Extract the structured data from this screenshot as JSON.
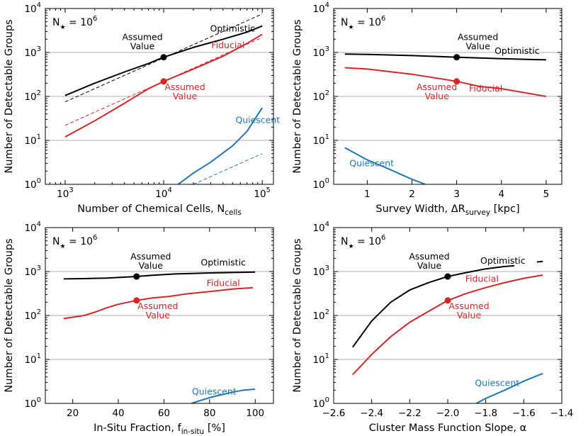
{
  "figure_label": "Four-panel sensitivity figure",
  "chart_data": [
    {
      "type": "line",
      "panel": "top-left",
      "xscale": "log",
      "xlim": [
        630,
        130000
      ],
      "ylim": [
        1,
        10000
      ],
      "xlabel": "Number of Chemical Cells, N",
      "xlabel_sub": "cells",
      "ylabel": "Number of Detectable Groups",
      "nstar_main": "N",
      "nstar_star": "★",
      "nstar_eq": " = 10",
      "nstar_exp": "6",
      "xticks": [
        {
          "v": 1000,
          "base": "10",
          "exp": "3"
        },
        {
          "v": 10000,
          "base": "10",
          "exp": "4"
        },
        {
          "v": 100000,
          "base": "10",
          "exp": "5"
        }
      ],
      "yticks": [
        {
          "v": 1,
          "base": "10",
          "exp": "0"
        },
        {
          "v": 10,
          "base": "10",
          "exp": "1"
        },
        {
          "v": 100,
          "base": "10",
          "exp": "2"
        },
        {
          "v": 1000,
          "base": "10",
          "exp": "3"
        },
        {
          "v": 10000,
          "base": "10",
          "exp": "4"
        }
      ],
      "series": [
        {
          "name": "Optimistic",
          "color": "#000000",
          "style": "solid",
          "x": [
            1000,
            2000,
            4000,
            7000,
            10000,
            20000,
            40000,
            70000,
            100000
          ],
          "y": [
            105,
            200,
            360,
            560,
            780,
            1300,
            2000,
            2900,
            4000
          ]
        },
        {
          "name": "Fiducial",
          "color": "#d62728",
          "style": "solid",
          "x": [
            1000,
            2000,
            4000,
            7000,
            10000,
            20000,
            40000,
            70000,
            100000
          ],
          "y": [
            12,
            28,
            70,
            150,
            220,
            420,
            820,
            1600,
            2600
          ]
        },
        {
          "name": "Quiescent",
          "color": "#1f77b4",
          "style": "solid",
          "x": [
            14000,
            20000,
            30000,
            50000,
            70000,
            100000
          ],
          "y": [
            1,
            1.8,
            3.2,
            7.5,
            16,
            55
          ]
        },
        {
          "name": "Optimistic scaling",
          "color": "#000000",
          "style": "dashed",
          "x": [
            1000,
            100000
          ],
          "y": [
            75,
            7500
          ]
        },
        {
          "name": "Fiducial scaling",
          "color": "#d62728",
          "style": "dashed",
          "x": [
            1000,
            100000
          ],
          "y": [
            22,
            2200
          ]
        },
        {
          "name": "Quiescent scaling",
          "color": "#1f77b4",
          "style": "dashed",
          "x": [
            20000,
            100000
          ],
          "y": [
            1,
            5
          ]
        }
      ],
      "markers": [
        {
          "x": 10000,
          "y": 780,
          "color": "#000000",
          "text1": "Assumed",
          "text2": "Value"
        },
        {
          "x": 10000,
          "y": 220,
          "color": "#d62728",
          "text1": "Assumed",
          "text2": "Value"
        }
      ],
      "labels": [
        {
          "text": "Optimistic",
          "color": "#000000",
          "x": 50000,
          "y": 3000
        },
        {
          "text": "Fiducial",
          "color": "#d62728",
          "x": 45000,
          "y": 1250
        },
        {
          "text": "Quiescent",
          "color": "#1f77b4",
          "x": 90000,
          "y": 25
        }
      ]
    },
    {
      "type": "line",
      "panel": "top-right",
      "xscale": "linear",
      "xlim": [
        0.25,
        5.35
      ],
      "ylim": [
        1,
        10000
      ],
      "xlabel": "Survey Width, ΔR",
      "xlabel_sub": "survey",
      "xlabel_tail": " [kpc]",
      "ylabel": "Number of Detectable Groups",
      "nstar_main": "N",
      "nstar_star": "★",
      "nstar_eq": " = 10",
      "nstar_exp": "6",
      "xticks": [
        {
          "v": 1,
          "text": "1"
        },
        {
          "v": 2,
          "text": "2"
        },
        {
          "v": 3,
          "text": "3"
        },
        {
          "v": 4,
          "text": "4"
        },
        {
          "v": 5,
          "text": "5"
        }
      ],
      "yticks": [
        {
          "v": 1,
          "base": "10",
          "exp": "0"
        },
        {
          "v": 10,
          "base": "10",
          "exp": "1"
        },
        {
          "v": 100,
          "base": "10",
          "exp": "2"
        },
        {
          "v": 1000,
          "base": "10",
          "exp": "3"
        },
        {
          "v": 10000,
          "base": "10",
          "exp": "4"
        }
      ],
      "series": [
        {
          "name": "Optimistic",
          "color": "#000000",
          "style": "solid",
          "x": [
            0.5,
            1.0,
            2.0,
            3.0,
            4.0,
            5.0
          ],
          "y": [
            920,
            900,
            850,
            780,
            720,
            680
          ]
        },
        {
          "name": "Fiducial",
          "color": "#d62728",
          "style": "solid",
          "x": [
            0.5,
            1.0,
            2.0,
            3.0,
            3.5,
            4.0,
            5.0
          ],
          "y": [
            450,
            420,
            320,
            220,
            170,
            150,
            100
          ]
        },
        {
          "name": "Quiescent",
          "color": "#1f77b4",
          "style": "solid",
          "x": [
            0.5,
            1.0,
            1.5,
            2.0,
            2.3
          ],
          "y": [
            6.8,
            3.6,
            2.2,
            1.3,
            1.0
          ]
        }
      ],
      "markers": [
        {
          "x": 3.0,
          "y": 780,
          "color": "#000000",
          "text1": "Assumed",
          "text2": "Value"
        },
        {
          "x": 3.0,
          "y": 220,
          "color": "#d62728",
          "text1": "Assumed",
          "text2": "Value"
        }
      ],
      "labels": [
        {
          "text": "Optimistic",
          "color": "#000000",
          "x": 4.35,
          "y": 920
        },
        {
          "text": "Fiducial",
          "color": "#d62728",
          "x": 3.65,
          "y": 130
        },
        {
          "text": "Quiescent",
          "color": "#1f77b4",
          "x": 1.1,
          "y": 2.6
        }
      ]
    },
    {
      "type": "line",
      "panel": "bottom-left",
      "xscale": "linear",
      "xlim": [
        8,
        108
      ],
      "ylim": [
        1,
        10000
      ],
      "xlabel": "In-Situ Fraction, f",
      "xlabel_sub": "in-situ",
      "xlabel_tail": " [%]",
      "ylabel": "Number of Detectable Groups",
      "nstar_main": "N",
      "nstar_star": "★",
      "nstar_eq": " = 10",
      "nstar_exp": "6",
      "xticks": [
        {
          "v": 20,
          "text": "20"
        },
        {
          "v": 40,
          "text": "40"
        },
        {
          "v": 60,
          "text": "60"
        },
        {
          "v": 80,
          "text": "80"
        },
        {
          "v": 100,
          "text": "100"
        }
      ],
      "yticks": [
        {
          "v": 1,
          "base": "10",
          "exp": "0"
        },
        {
          "v": 10,
          "base": "10",
          "exp": "1"
        },
        {
          "v": 100,
          "base": "10",
          "exp": "2"
        },
        {
          "v": 1000,
          "base": "10",
          "exp": "3"
        },
        {
          "v": 10000,
          "base": "10",
          "exp": "4"
        }
      ],
      "series": [
        {
          "name": "Optimistic",
          "color": "#000000",
          "style": "solid",
          "x": [
            16,
            25,
            35,
            48,
            55,
            65,
            80,
            100
          ],
          "y": [
            680,
            690,
            710,
            770,
            820,
            880,
            930,
            970
          ]
        },
        {
          "name": "Fiducial",
          "color": "#d62728",
          "style": "solid",
          "x": [
            16,
            25,
            30,
            35,
            40,
            48,
            55,
            62,
            70,
            80,
            90,
            99
          ],
          "y": [
            85,
            100,
            120,
            150,
            180,
            220,
            250,
            270,
            310,
            350,
            400,
            430
          ]
        },
        {
          "name": "Quiescent",
          "color": "#1f77b4",
          "style": "solid",
          "x": [
            72,
            80,
            90,
            95,
            100
          ],
          "y": [
            1,
            1.35,
            1.8,
            2.0,
            2.1
          ]
        }
      ],
      "markers": [
        {
          "x": 48,
          "y": 770,
          "color": "#000000",
          "text1": "Assumed",
          "text2": "Value"
        },
        {
          "x": 48,
          "y": 220,
          "color": "#d62728",
          "text1": "Assumed",
          "text2": "Value"
        }
      ],
      "labels": [
        {
          "text": "Optimistic",
          "color": "#000000",
          "x": 86,
          "y": 1380
        },
        {
          "text": "Fiducial",
          "color": "#d62728",
          "x": 86,
          "y": 470
        },
        {
          "text": "Quiescent",
          "color": "#1f77b4",
          "x": 82,
          "y": 1.6
        }
      ]
    },
    {
      "type": "line",
      "panel": "bottom-right",
      "xscale": "linear",
      "xlim": [
        -2.6,
        -1.4
      ],
      "ylim": [
        1,
        10000
      ],
      "xlabel": "Cluster Mass Function Slope, α",
      "ylabel": "Number of Detectable Groups",
      "nstar_main": "N",
      "nstar_star": "★",
      "nstar_eq": " = 10",
      "nstar_exp": "6",
      "xticks": [
        {
          "v": -2.6,
          "text": "−2.6"
        },
        {
          "v": -2.4,
          "text": "−2.4"
        },
        {
          "v": -2.2,
          "text": "−2.2"
        },
        {
          "v": -2.0,
          "text": "−2.0"
        },
        {
          "v": -1.8,
          "text": "−1.8"
        },
        {
          "v": -1.6,
          "text": "−1.6"
        },
        {
          "v": -1.4,
          "text": "−1.4"
        }
      ],
      "yticks": [
        {
          "v": 1,
          "base": "10",
          "exp": "0"
        },
        {
          "v": 10,
          "base": "10",
          "exp": "1"
        },
        {
          "v": 100,
          "base": "10",
          "exp": "2"
        },
        {
          "v": 1000,
          "base": "10",
          "exp": "3"
        },
        {
          "v": 10000,
          "base": "10",
          "exp": "4"
        }
      ],
      "series": [
        {
          "name": "Optimistic",
          "color": "#000000",
          "style": "solid",
          "x": [
            -2.5,
            -2.4,
            -2.3,
            -2.2,
            -2.1,
            -2.0,
            -1.9,
            -1.8,
            -1.7,
            -1.65
          ],
          "y": [
            19,
            75,
            200,
            380,
            560,
            770,
            950,
            1150,
            1300,
            1350
          ]
        },
        {
          "name": "Optimistic tail",
          "color": "#000000",
          "style": "solid",
          "x": [
            -1.53,
            -1.5
          ],
          "y": [
            1650,
            1700
          ]
        },
        {
          "name": "Fiducial",
          "color": "#d62728",
          "style": "solid",
          "x": [
            -2.5,
            -2.4,
            -2.3,
            -2.2,
            -2.1,
            -2.0,
            -1.9,
            -1.8,
            -1.7,
            -1.6,
            -1.5
          ],
          "y": [
            4.5,
            13,
            33,
            70,
            125,
            220,
            320,
            430,
            560,
            700,
            830
          ]
        },
        {
          "name": "Quiescent",
          "color": "#1f77b4",
          "style": "solid",
          "x": [
            -1.85,
            -1.8,
            -1.7,
            -1.6,
            -1.5
          ],
          "y": [
            1,
            1.3,
            2.0,
            3.2,
            4.8
          ]
        }
      ],
      "markers": [
        {
          "x": -2.0,
          "y": 770,
          "color": "#000000",
          "text1": "Assumed",
          "text2": "Value"
        },
        {
          "x": -2.0,
          "y": 220,
          "color": "#d62728",
          "text1": "Assumed",
          "text2": "Value"
        }
      ],
      "labels": [
        {
          "text": "Optimistic",
          "color": "#000000",
          "x": -1.71,
          "y": 1500
        },
        {
          "text": "Fiducial",
          "color": "#d62728",
          "x": -1.82,
          "y": 580
        },
        {
          "text": "Quiescent",
          "color": "#1f77b4",
          "x": -1.74,
          "y": 2.5
        }
      ]
    }
  ]
}
